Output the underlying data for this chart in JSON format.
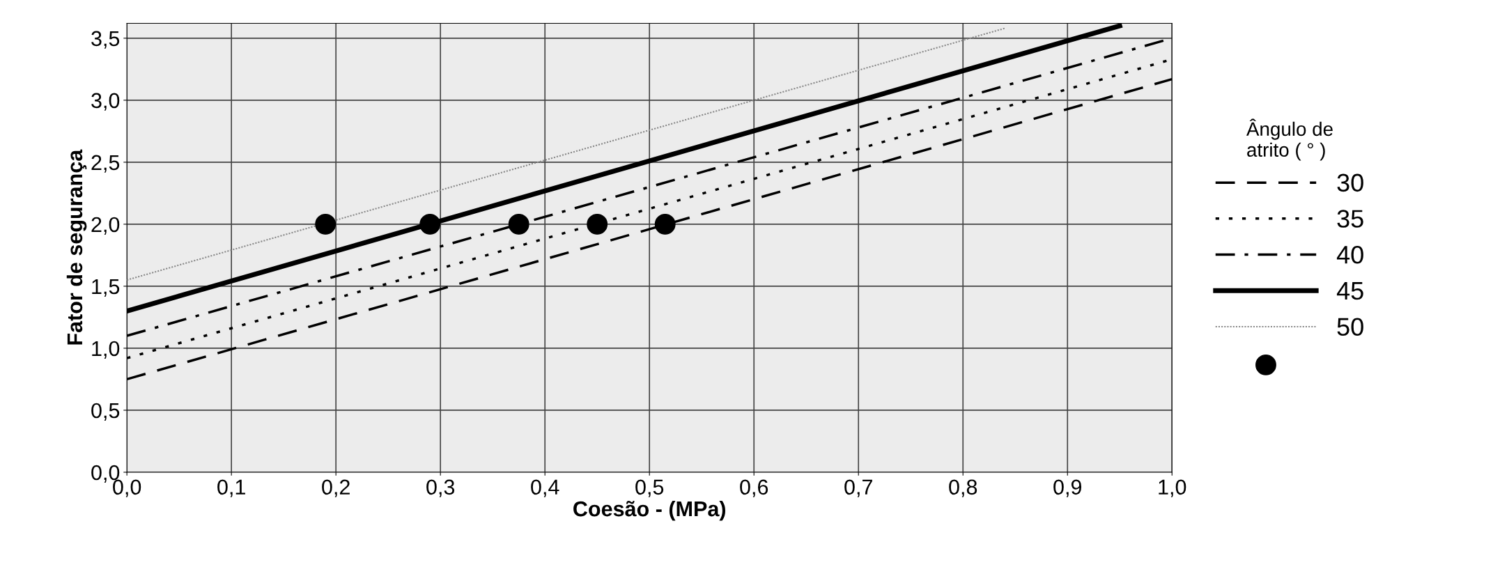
{
  "chart_data": {
    "type": "line",
    "xlabel": "Coesão - (MPa)",
    "ylabel": "Fator de segurança",
    "legend_title": "Ângulo de\natrito ( ° )",
    "xlim": [
      0,
      1.0
    ],
    "ylim": [
      0,
      3.62
    ],
    "xticks": [
      {
        "value": 0,
        "label": "0,0"
      },
      {
        "value": 0.1,
        "label": "0,1"
      },
      {
        "value": 0.2,
        "label": "0,2"
      },
      {
        "value": 0.3,
        "label": "0,3"
      },
      {
        "value": 0.4,
        "label": "0,4"
      },
      {
        "value": 0.5,
        "label": "0,5"
      },
      {
        "value": 0.6,
        "label": "0,6"
      },
      {
        "value": 0.7,
        "label": "0,7"
      },
      {
        "value": 0.8,
        "label": "0,8"
      },
      {
        "value": 0.9,
        "label": "0,9"
      },
      {
        "value": 1.0,
        "label": "1,0"
      }
    ],
    "yticks": [
      {
        "value": 0,
        "label": "0,0"
      },
      {
        "value": 0.5,
        "label": "0,5"
      },
      {
        "value": 1.0,
        "label": "1,0"
      },
      {
        "value": 1.5,
        "label": "1,5"
      },
      {
        "value": 2.0,
        "label": "2,0"
      },
      {
        "value": 2.5,
        "label": "2,5"
      },
      {
        "value": 3.0,
        "label": "3,0"
      },
      {
        "value": 3.5,
        "label": "3,5"
      }
    ],
    "grid": true,
    "legend": "right",
    "series": [
      {
        "name": "30",
        "color": "#000000",
        "line_style": "dashed",
        "x": [
          0,
          1.0
        ],
        "values": [
          0.75,
          3.17
        ]
      },
      {
        "name": "35",
        "color": "#000000",
        "line_style": "dotted",
        "x": [
          0,
          1.0
        ],
        "values": [
          0.92,
          3.33
        ]
      },
      {
        "name": "40",
        "color": "#000000",
        "line_style": "dashdot",
        "x": [
          0,
          1.0
        ],
        "values": [
          1.1,
          3.5
        ]
      },
      {
        "name": "45",
        "color": "#000000",
        "line_style": "solid",
        "x": [
          0,
          0.95
        ],
        "values": [
          1.3,
          3.6
        ]
      },
      {
        "name": "50",
        "color": "#888888",
        "line_style": "dotted_thin",
        "x": [
          0,
          0.84
        ],
        "values": [
          1.55,
          3.58
        ]
      },
      {
        "type": "scatter",
        "color": "#000000",
        "marker": "circle",
        "x": [
          0.19,
          0.29,
          0.375,
          0.45,
          0.515
        ],
        "values": [
          2.0,
          2.0,
          2.0,
          2.0,
          2.0
        ]
      }
    ]
  }
}
